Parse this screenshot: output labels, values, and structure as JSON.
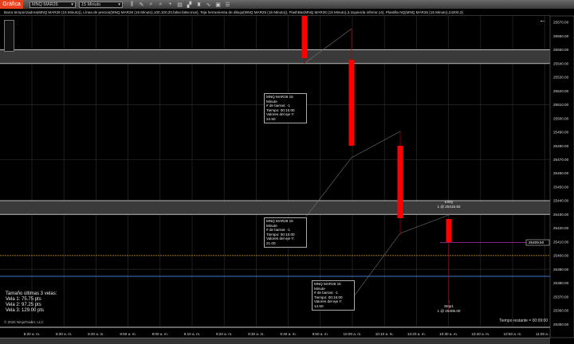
{
  "toolbar": {
    "chart_button": "Gráfica",
    "instrument": "MNQ MAR26",
    "interval": "15 Minuto",
    "icons": [
      "bar-chart-icon",
      "pencil-icon",
      "zoom-in-icon",
      "zoom-out-icon",
      "crosshair-icon",
      "properties-icon",
      "template-icon",
      "strategy-icon",
      "indicator-icon",
      "data-box-icon",
      "list-icon"
    ]
  },
  "indicator_label": "Barra temporizadora(MNQ MAR26 (15 Minuto)), Línea de precios(MNQ MAR26 (15 Minuto),100,100,20,false,false,true), Teja herramienta de dibujo(MNQ MAR26 (15 Minuto)), FlashBar(MNQ MAR26 (15 Minuto),3,Izquierda inferior,14), Plantilla NQ(MNQ MAR26 (15 Minuto),24200,3)",
  "colors": {
    "candle": "#ff0000",
    "price_line": "#cc33cc",
    "yellow_line": "#d4a017",
    "blue_line": "#4477cc",
    "accent": "#e8401c"
  },
  "price_axis": [
    "25570.00",
    "25560.00",
    "25550.00",
    "25540.00",
    "25530.00",
    "25520.00",
    "25510.00",
    "25500.00",
    "25490.00",
    "25480.00",
    "25470.00",
    "25460.00",
    "25450.00",
    "25440.00",
    "25430.00",
    "25420.00",
    "25410.00",
    "25400.00",
    "25390.00",
    "25380.00",
    "25370.00",
    "25360.00",
    "25350.00"
  ],
  "current_price": "25409.50",
  "time_axis": [
    "8:20 a. m.",
    "8:30 a. m.",
    "8:40 a. m.",
    "8:50 a. m.",
    "9:00 a. m.",
    "9:10 a. m.",
    "9:20 a. m.",
    "9:30 a. m.",
    "9:40 a. m.",
    "9:50 a. m.",
    "10:00 a. m.",
    "10:10 a. m.",
    "10:20 a. m.",
    "10:30 a. m.",
    "10:40 a. m.",
    "10:50 a. m.",
    "11:00 a. m."
  ],
  "info_boxes": [
    {
      "title": "MNQ MAR26 15 Minute",
      "bars": "# de barras: -1",
      "time": "Tiempo:      00:15:00",
      "yval": "Valores del eje Y: 24.50"
    },
    {
      "title": "MNQ MAR26 15 Minute",
      "bars": "# de barras: -1",
      "time": "Tiempo:      00:15:00",
      "yval": "Valores del eje Y: 21.00"
    },
    {
      "title": "MNQ MAR26 15 Minute",
      "bars": "# de barras: -1",
      "time": "Tiempo:      00:15:00",
      "yval": "Valores del eje Y: 14.50"
    }
  ],
  "entry": {
    "name": "Entry",
    "detail": "1 @ 25416.50"
  },
  "stop": {
    "name": "Stop1",
    "detail": "1 @ 25405.00"
  },
  "stats": {
    "title": "Tamaño últimas 3 velas:",
    "v1": "Vela 1: 75.75 pts",
    "v2": "Vela 2: 97.25 pts",
    "v3": "Vela 3: 129.00 pts"
  },
  "copyright": "© 2025 NinjaTrader, LLC",
  "remaining": "Tiempo restante = 00:09:00"
}
